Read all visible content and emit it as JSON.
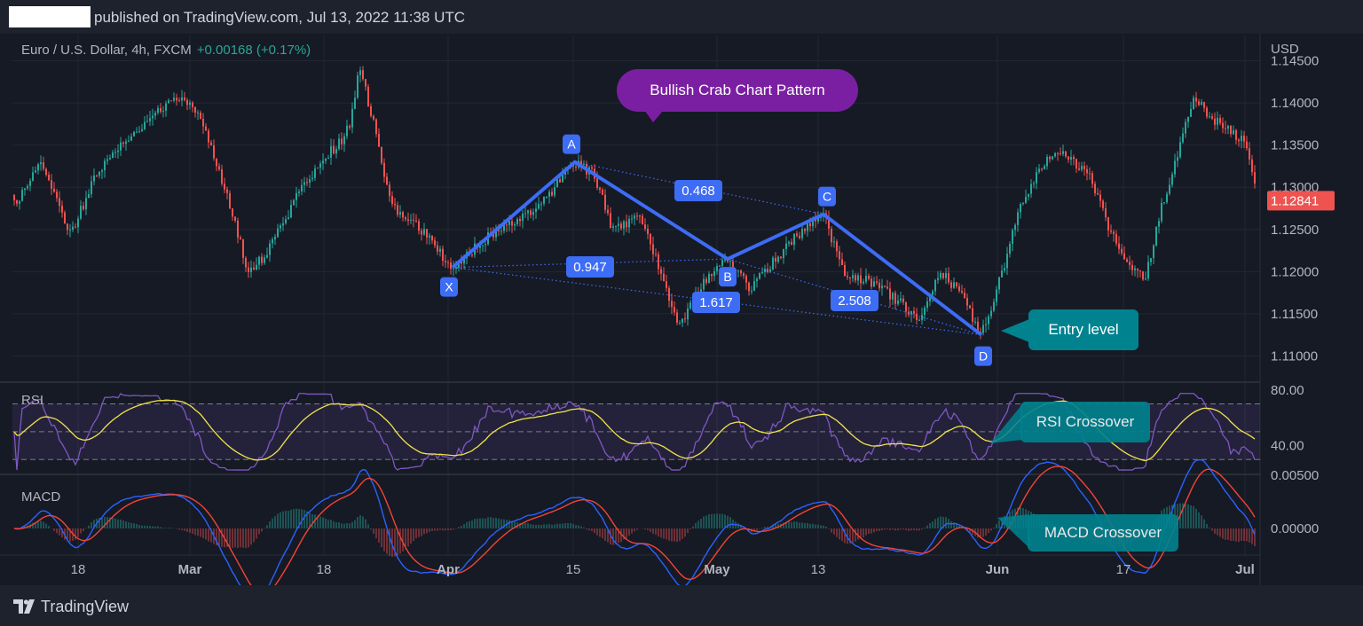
{
  "header": {
    "published": "published on TradingView.com, Jul 13, 2022 11:38 UTC"
  },
  "symbol": {
    "name": "Euro / U.S. Dollar, 4h, FXCM",
    "change": "+0.00168 (+0.17%)"
  },
  "footer": {
    "brand": "TradingView"
  },
  "colors": {
    "background": "#161a25",
    "up": "#26a69a",
    "down": "#ef5350",
    "pattern": "#3d6cf5",
    "rsi": "#7e57c2",
    "signal": "#f2e34c",
    "macd_line": "#2962ff",
    "macd_signal": "#f44336"
  },
  "annotations": {
    "pattern_title": "Bullish Crab Chart Pattern",
    "entry": "Entry level",
    "rsi_cross": "RSI Crossover",
    "macd_cross": "MACD Crossover"
  },
  "chart_data": {
    "type": "candlestick",
    "currency": "USD",
    "last_price": "1.12841",
    "y_ticks": [
      "1.14500",
      "1.14000",
      "1.13500",
      "1.13000",
      "1.12500",
      "1.12000",
      "1.11500",
      "1.11000"
    ],
    "x_ticks": [
      "18",
      "Mar",
      "18",
      "Apr",
      "15",
      "May",
      "13",
      "Jun",
      "17",
      "Jul"
    ],
    "ylim": [
      1.107,
      1.148
    ],
    "price_path": [
      [
        0,
        1.1305
      ],
      [
        20,
        1.1285
      ],
      [
        45,
        1.133
      ],
      [
        80,
        1.1245
      ],
      [
        110,
        1.132
      ],
      [
        140,
        1.1355
      ],
      [
        185,
        1.1395
      ],
      [
        205,
        1.141
      ],
      [
        225,
        1.1385
      ],
      [
        250,
        1.131
      ],
      [
        280,
        1.12
      ],
      [
        300,
        1.122
      ],
      [
        340,
        1.13
      ],
      [
        370,
        1.134
      ],
      [
        385,
        1.1355
      ],
      [
        395,
        1.1375
      ],
      [
        405,
        1.1445
      ],
      [
        420,
        1.138
      ],
      [
        440,
        1.128
      ],
      [
        470,
        1.1255
      ],
      [
        510,
        1.1205
      ],
      [
        560,
        1.125
      ],
      [
        610,
        1.128
      ],
      [
        648,
        1.133
      ],
      [
        670,
        1.1315
      ],
      [
        690,
        1.125
      ],
      [
        720,
        1.1265
      ],
      [
        745,
        1.12
      ],
      [
        765,
        1.1135
      ],
      [
        790,
        1.1185
      ],
      [
        820,
        1.1215
      ],
      [
        845,
        1.118
      ],
      [
        870,
        1.121
      ],
      [
        900,
        1.1245
      ],
      [
        928,
        1.1268
      ],
      [
        950,
        1.12
      ],
      [
        975,
        1.119
      ],
      [
        1000,
        1.1175
      ],
      [
        1035,
        1.1145
      ],
      [
        1060,
        1.12
      ],
      [
        1085,
        1.117
      ],
      [
        1106,
        1.1125
      ],
      [
        1130,
        1.12
      ],
      [
        1150,
        1.128
      ],
      [
        1170,
        1.132
      ],
      [
        1190,
        1.1345
      ],
      [
        1210,
        1.133
      ],
      [
        1230,
        1.131
      ],
      [
        1250,
        1.125
      ],
      [
        1270,
        1.121
      ],
      [
        1290,
        1.119
      ],
      [
        1310,
        1.128
      ],
      [
        1325,
        1.133
      ],
      [
        1345,
        1.141
      ],
      [
        1365,
        1.138
      ],
      [
        1385,
        1.137
      ],
      [
        1405,
        1.135
      ],
      [
        1418,
        1.129
      ]
    ],
    "harmonic_points": [
      {
        "label": "X",
        "x": 510,
        "price": 1.1205
      },
      {
        "label": "A",
        "x": 648,
        "price": 1.133
      },
      {
        "label": "B",
        "x": 820,
        "price": 1.1215
      },
      {
        "label": "C",
        "x": 928,
        "price": 1.1268
      },
      {
        "label": "D",
        "x": 1106,
        "price": 1.1125
      }
    ],
    "ratios": [
      "0.468",
      "0.947",
      "1.617",
      "2.508"
    ],
    "rsi": {
      "label": "RSI",
      "ticks": [
        "80.00",
        "40.00"
      ],
      "bands": [
        70,
        50,
        30
      ],
      "ylim": [
        20,
        85
      ]
    },
    "macd": {
      "label": "MACD",
      "ticks": [
        "0.00500",
        "0.00000"
      ],
      "ylim": [
        -0.0025,
        0.005
      ]
    }
  }
}
